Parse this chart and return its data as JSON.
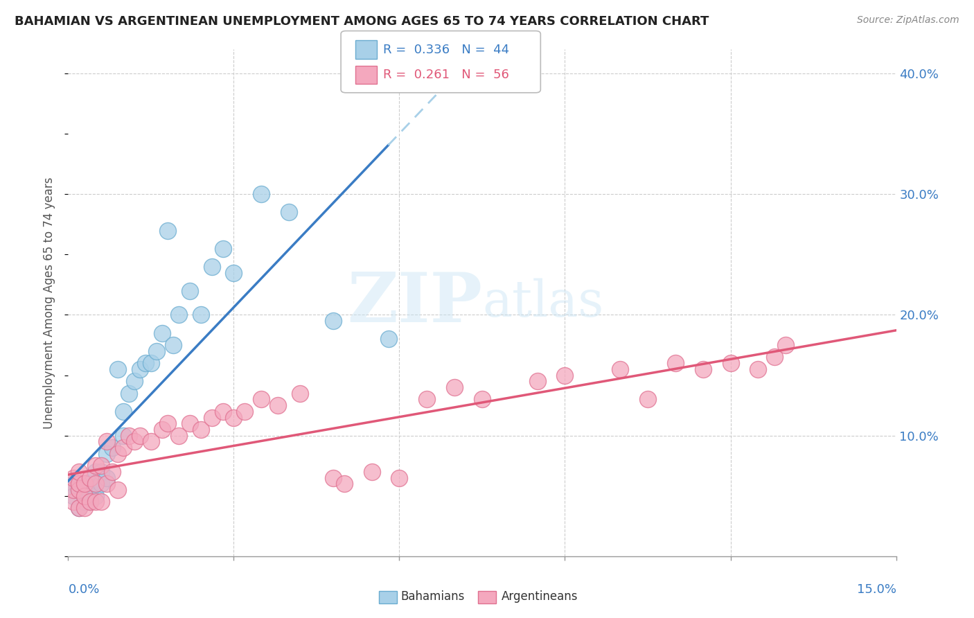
{
  "title": "BAHAMIAN VS ARGENTINEAN UNEMPLOYMENT AMONG AGES 65 TO 74 YEARS CORRELATION CHART",
  "source": "Source: ZipAtlas.com",
  "ylabel_label": "Unemployment Among Ages 65 to 74 years",
  "ytick_labels": [
    "10.0%",
    "20.0%",
    "30.0%",
    "40.0%"
  ],
  "ytick_vals": [
    0.1,
    0.2,
    0.3,
    0.4
  ],
  "watermark": "ZIPatlas",
  "legend1_r": "0.336",
  "legend1_n": "44",
  "legend2_r": "0.261",
  "legend2_n": "56",
  "bahamas_color": "#A8D0E8",
  "bahamas_edge": "#6AACD0",
  "argentina_color": "#F4A8BE",
  "argentina_edge": "#E07090",
  "trend_blue": "#3A7CC4",
  "trend_pink": "#E05878",
  "trend_dashed_color": "#A8D0E8",
  "bahamians_x": [
    0.001,
    0.001,
    0.001,
    0.002,
    0.002,
    0.002,
    0.003,
    0.003,
    0.003,
    0.003,
    0.004,
    0.004,
    0.004,
    0.004,
    0.005,
    0.005,
    0.005,
    0.006,
    0.006,
    0.007,
    0.007,
    0.008,
    0.009,
    0.01,
    0.01,
    0.011,
    0.012,
    0.013,
    0.014,
    0.015,
    0.016,
    0.017,
    0.018,
    0.019,
    0.02,
    0.022,
    0.024,
    0.026,
    0.028,
    0.03,
    0.035,
    0.04,
    0.048,
    0.058
  ],
  "bahamians_y": [
    0.06,
    0.055,
    0.05,
    0.055,
    0.06,
    0.04,
    0.045,
    0.05,
    0.055,
    0.06,
    0.045,
    0.055,
    0.06,
    0.05,
    0.05,
    0.06,
    0.07,
    0.06,
    0.07,
    0.065,
    0.085,
    0.09,
    0.155,
    0.1,
    0.12,
    0.135,
    0.145,
    0.155,
    0.16,
    0.16,
    0.17,
    0.185,
    0.27,
    0.175,
    0.2,
    0.22,
    0.2,
    0.24,
    0.255,
    0.235,
    0.3,
    0.285,
    0.195,
    0.18
  ],
  "argentineans_x": [
    0.001,
    0.001,
    0.001,
    0.002,
    0.002,
    0.002,
    0.002,
    0.003,
    0.003,
    0.003,
    0.004,
    0.004,
    0.005,
    0.005,
    0.005,
    0.006,
    0.006,
    0.007,
    0.007,
    0.008,
    0.009,
    0.009,
    0.01,
    0.011,
    0.012,
    0.013,
    0.015,
    0.017,
    0.018,
    0.02,
    0.022,
    0.024,
    0.026,
    0.028,
    0.03,
    0.032,
    0.035,
    0.038,
    0.042,
    0.048,
    0.05,
    0.055,
    0.06,
    0.065,
    0.07,
    0.075,
    0.085,
    0.09,
    0.1,
    0.105,
    0.11,
    0.115,
    0.12,
    0.125,
    0.128,
    0.13
  ],
  "argentineans_y": [
    0.045,
    0.055,
    0.065,
    0.04,
    0.055,
    0.06,
    0.07,
    0.04,
    0.05,
    0.06,
    0.045,
    0.065,
    0.045,
    0.06,
    0.075,
    0.045,
    0.075,
    0.06,
    0.095,
    0.07,
    0.055,
    0.085,
    0.09,
    0.1,
    0.095,
    0.1,
    0.095,
    0.105,
    0.11,
    0.1,
    0.11,
    0.105,
    0.115,
    0.12,
    0.115,
    0.12,
    0.13,
    0.125,
    0.135,
    0.065,
    0.06,
    0.07,
    0.065,
    0.13,
    0.14,
    0.13,
    0.145,
    0.15,
    0.155,
    0.13,
    0.16,
    0.155,
    0.16,
    0.155,
    0.165,
    0.175
  ]
}
